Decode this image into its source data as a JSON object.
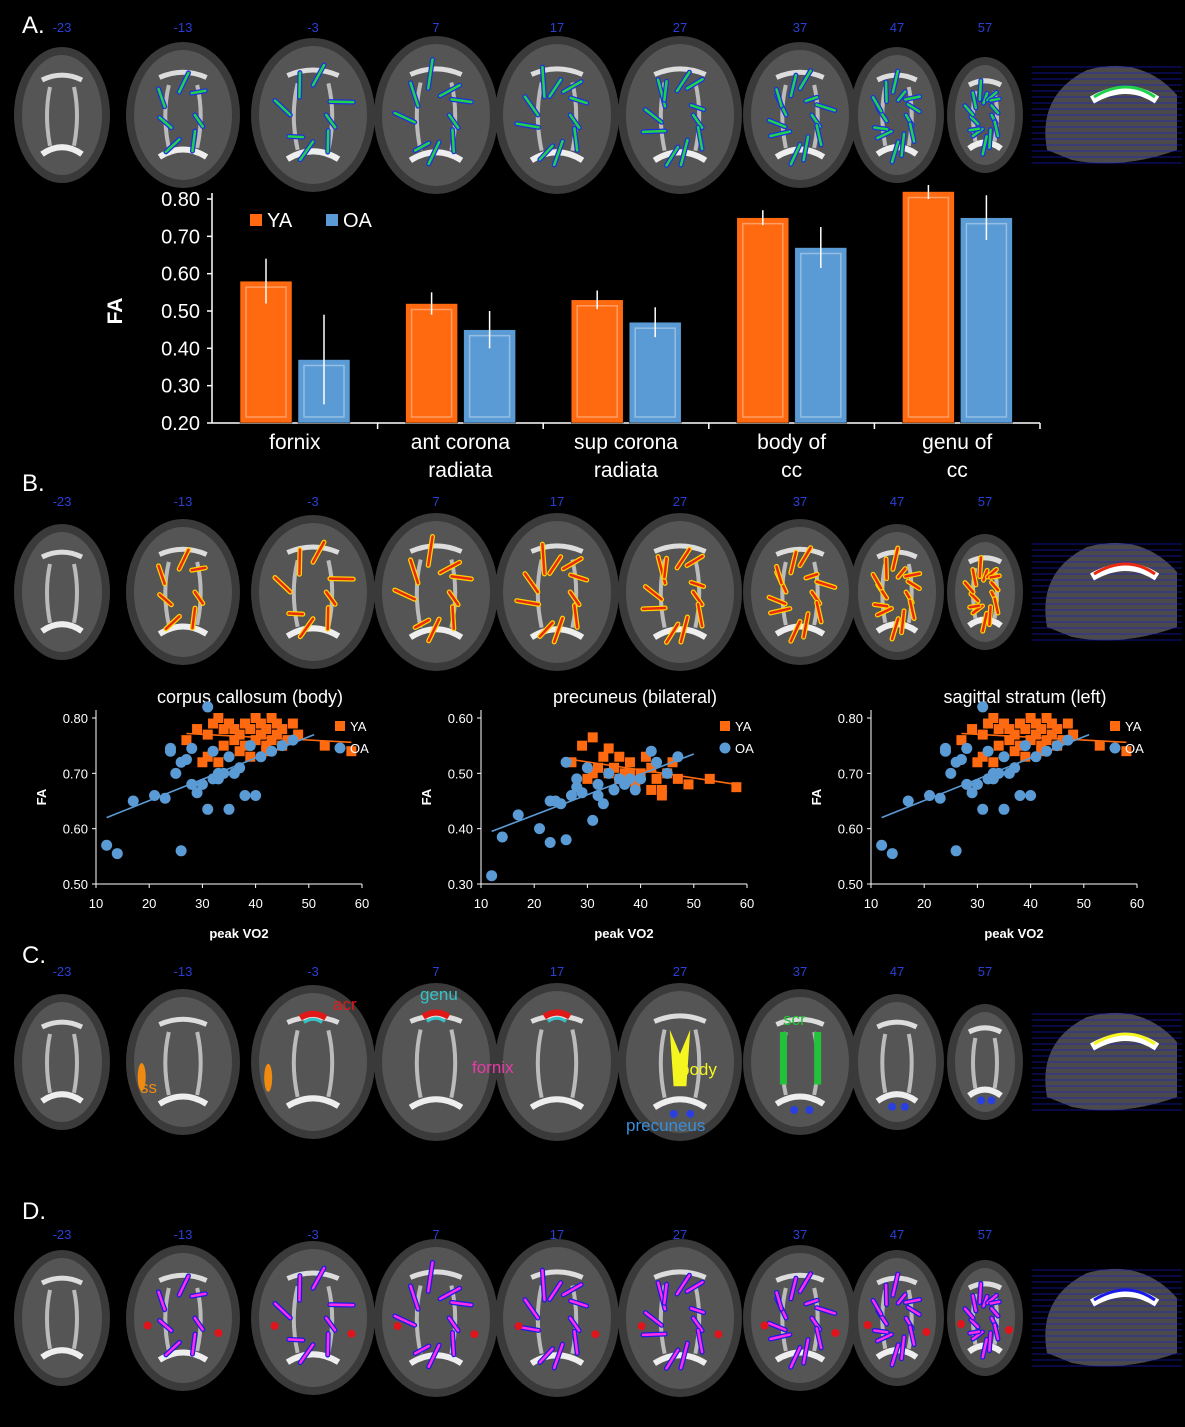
{
  "panels": {
    "a": "A.",
    "b": "B.",
    "c": "C.",
    "d": "D."
  },
  "slices": [
    "-23",
    "-13",
    "-3",
    "7",
    "17",
    "27",
    "37",
    "47",
    "57"
  ],
  "overlay_colors": {
    "a_primary": "#1fd24a",
    "a_secondary": "#1f2fe0",
    "b_primary": "#e82a10",
    "b_secondary": "#ffd400",
    "d_red": "#e0141a",
    "d_blue": "#1a1ae6",
    "d_magenta": "#ff2ee6"
  },
  "region_labels": {
    "acr": {
      "text": "acr",
      "color": "#e01818"
    },
    "genu": {
      "text": "genu",
      "color": "#36c2c6"
    },
    "scr": {
      "text": "scr",
      "color": "#22c23a"
    },
    "ss": {
      "text": "ss",
      "color": "#f08a10"
    },
    "fornix": {
      "text": "fornix",
      "color": "#e83aa8"
    },
    "body": {
      "text": "body",
      "color": "#f5f520"
    },
    "precuneus": {
      "text": "precuneus",
      "color": "#3a8ed8"
    }
  },
  "chart_data": [
    {
      "type": "bar",
      "ylabel": "FA",
      "categories": [
        "fornix",
        "ant corona radiata",
        "sup corona radiata",
        "body of cc",
        "genu of cc"
      ],
      "ylim": [
        0.2,
        0.8
      ],
      "yticks": [
        "0.20",
        "0.30",
        "0.40",
        "0.50",
        "0.60",
        "0.70",
        "0.80"
      ],
      "legend": "top-left",
      "series": [
        {
          "name": "YA",
          "color": "#ff6a10",
          "values": [
            0.58,
            0.52,
            0.53,
            0.75,
            0.82
          ],
          "err": [
            0.06,
            0.03,
            0.025,
            0.02,
            0.02
          ]
        },
        {
          "name": "OA",
          "color": "#5b9bd5",
          "values": [
            0.37,
            0.45,
            0.47,
            0.67,
            0.75
          ],
          "err": [
            0.12,
            0.05,
            0.04,
            0.055,
            0.06
          ]
        }
      ]
    },
    {
      "type": "scatter",
      "title": "corpus callosum (body)",
      "xlabel": "peak VO2",
      "ylabel": "FA",
      "xlim": [
        10,
        60
      ],
      "ylim": [
        0.5,
        0.85
      ],
      "xticks": [
        "10",
        "20",
        "30",
        "40",
        "50",
        "60"
      ],
      "yticks": [
        "0.50",
        "0.60",
        "0.70",
        "0.80"
      ],
      "legend": "top-right",
      "series": [
        {
          "name": "YA",
          "color": "#ff6a10",
          "marker": "square",
          "x": [
            27,
            29,
            31,
            32,
            33,
            34,
            34,
            35,
            36,
            36,
            37,
            38,
            38,
            39,
            40,
            40,
            41,
            41,
            42,
            42,
            43,
            43,
            44,
            44,
            45,
            45,
            46,
            47,
            48,
            53,
            58,
            30,
            33,
            37,
            39,
            42,
            31
          ],
          "y": [
            0.76,
            0.78,
            0.77,
            0.79,
            0.8,
            0.75,
            0.78,
            0.79,
            0.76,
            0.78,
            0.77,
            0.79,
            0.75,
            0.78,
            0.76,
            0.8,
            0.77,
            0.79,
            0.75,
            0.78,
            0.8,
            0.76,
            0.79,
            0.77,
            0.75,
            0.78,
            0.76,
            0.79,
            0.77,
            0.75,
            0.74,
            0.72,
            0.72,
            0.74,
            0.73,
            0.74,
            0.73
          ],
          "fit": [
            [
              27,
              0.772
            ],
            [
              58,
              0.756
            ]
          ]
        },
        {
          "name": "OA",
          "color": "#5b9bd5",
          "marker": "circle",
          "x": [
            12,
            14,
            17,
            21,
            23,
            24,
            25,
            26,
            26,
            27,
            28,
            29,
            30,
            31,
            31,
            32,
            32,
            33,
            34,
            35,
            35,
            36,
            37,
            38,
            39,
            40,
            41,
            43,
            45,
            47,
            24,
            28,
            33
          ],
          "y": [
            0.57,
            0.555,
            0.65,
            0.66,
            0.655,
            0.745,
            0.7,
            0.72,
            0.56,
            0.725,
            0.745,
            0.665,
            0.68,
            0.82,
            0.635,
            0.74,
            0.69,
            0.69,
            0.7,
            0.73,
            0.635,
            0.7,
            0.71,
            0.66,
            0.75,
            0.66,
            0.73,
            0.74,
            0.75,
            0.76,
            0.74,
            0.68,
            0.7
          ],
          "fit": [
            [
              12,
              0.62
            ],
            [
              51,
              0.77
            ]
          ]
        }
      ]
    },
    {
      "type": "scatter",
      "title": "precuneus (bilateral)",
      "xlabel": "peak VO2",
      "ylabel": "FA",
      "xlim": [
        10,
        60
      ],
      "ylim": [
        0.3,
        0.6
      ],
      "xticks": [
        "10",
        "20",
        "30",
        "40",
        "50",
        "60"
      ],
      "yticks": [
        "0.30",
        "0.40",
        "0.50",
        "0.60"
      ],
      "legend": "top-right",
      "series": [
        {
          "name": "YA",
          "color": "#ff6a10",
          "marker": "square",
          "x": [
            27,
            29,
            30,
            31,
            32,
            33,
            34,
            34,
            35,
            36,
            36,
            37,
            38,
            39,
            40,
            41,
            42,
            42,
            43,
            44,
            45,
            46,
            47,
            49,
            53,
            58,
            31,
            38,
            44
          ],
          "y": [
            0.52,
            0.55,
            0.49,
            0.565,
            0.51,
            0.53,
            0.5,
            0.545,
            0.51,
            0.49,
            0.53,
            0.5,
            0.52,
            0.48,
            0.5,
            0.53,
            0.47,
            0.51,
            0.49,
            0.46,
            0.5,
            0.52,
            0.49,
            0.48,
            0.49,
            0.475,
            0.5,
            0.5,
            0.47
          ],
          "fit": [
            [
              27,
              0.525
            ],
            [
              58,
              0.48
            ]
          ]
        },
        {
          "name": "OA",
          "color": "#5b9bd5",
          "marker": "circle",
          "x": [
            12,
            14,
            17,
            21,
            23,
            24,
            25,
            26,
            26,
            27,
            28,
            29,
            30,
            31,
            32,
            32,
            33,
            34,
            35,
            36,
            37,
            38,
            39,
            40,
            42,
            43,
            45,
            47,
            23,
            28
          ],
          "y": [
            0.315,
            0.385,
            0.425,
            0.4,
            0.375,
            0.45,
            0.445,
            0.38,
            0.52,
            0.46,
            0.475,
            0.465,
            0.51,
            0.415,
            0.48,
            0.46,
            0.445,
            0.5,
            0.47,
            0.49,
            0.48,
            0.49,
            0.47,
            0.49,
            0.54,
            0.52,
            0.5,
            0.53,
            0.45,
            0.49
          ],
          "fit": [
            [
              12,
              0.395
            ],
            [
              50,
              0.535
            ]
          ]
        }
      ]
    },
    {
      "type": "scatter",
      "title": "sagittal stratum (left)",
      "xlabel": "peak VO2",
      "ylabel": "FA",
      "xlim": [
        10,
        60
      ],
      "ylim": [
        0.5,
        0.85
      ],
      "xticks": [
        "10",
        "20",
        "30",
        "40",
        "50",
        "60"
      ],
      "yticks": [
        "0.50",
        "0.60",
        "0.70",
        "0.80"
      ],
      "legend": "top-right",
      "series": [
        {
          "name": "YA",
          "color": "#ff6a10",
          "marker": "square",
          "x": [
            27,
            29,
            31,
            32,
            33,
            34,
            34,
            35,
            36,
            36,
            37,
            38,
            38,
            39,
            40,
            40,
            41,
            41,
            42,
            42,
            43,
            43,
            44,
            44,
            45,
            45,
            46,
            47,
            48,
            53,
            58,
            30,
            33,
            37,
            39,
            42,
            31
          ],
          "y": [
            0.76,
            0.78,
            0.77,
            0.79,
            0.8,
            0.75,
            0.78,
            0.79,
            0.76,
            0.78,
            0.77,
            0.79,
            0.75,
            0.78,
            0.76,
            0.8,
            0.77,
            0.79,
            0.75,
            0.78,
            0.8,
            0.76,
            0.79,
            0.77,
            0.75,
            0.78,
            0.76,
            0.79,
            0.77,
            0.75,
            0.74,
            0.72,
            0.72,
            0.74,
            0.73,
            0.74,
            0.73
          ],
          "fit": [
            [
              27,
              0.772
            ],
            [
              58,
              0.756
            ]
          ]
        },
        {
          "name": "OA",
          "color": "#5b9bd5",
          "marker": "circle",
          "x": [
            12,
            14,
            17,
            21,
            23,
            24,
            25,
            26,
            26,
            27,
            28,
            29,
            30,
            31,
            31,
            32,
            32,
            33,
            34,
            35,
            35,
            36,
            37,
            38,
            39,
            40,
            41,
            43,
            45,
            47,
            24,
            28,
            33
          ],
          "y": [
            0.57,
            0.555,
            0.65,
            0.66,
            0.655,
            0.745,
            0.7,
            0.72,
            0.56,
            0.725,
            0.745,
            0.665,
            0.68,
            0.82,
            0.635,
            0.74,
            0.69,
            0.69,
            0.7,
            0.73,
            0.635,
            0.7,
            0.71,
            0.66,
            0.75,
            0.66,
            0.73,
            0.74,
            0.75,
            0.76,
            0.74,
            0.68,
            0.7
          ],
          "fit": [
            [
              12,
              0.62
            ],
            [
              51,
              0.77
            ]
          ]
        }
      ]
    }
  ]
}
